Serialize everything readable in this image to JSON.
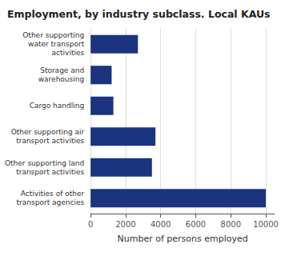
{
  "chart_data": {
    "type": "bar",
    "orientation": "horizontal",
    "title": "Employment, by industry subclass. Local KAUs",
    "categories": [
      "Activities of other\ntransport agencies",
      "Other supporting land\ntransport activities",
      "Other supporting air\ntransport activities",
      "Cargo handling",
      "Storage and\nwarehousing",
      "Other supporting\nwater transport\nactivities"
    ],
    "values": [
      10000,
      3500,
      3700,
      1300,
      1200,
      2700
    ],
    "color": "#1a3480",
    "xlabel": "Number of persons employed",
    "xlim": [
      0,
      10500
    ],
    "xticks": [
      0,
      2000,
      4000,
      6000,
      8000,
      10000
    ],
    "grid": true
  }
}
